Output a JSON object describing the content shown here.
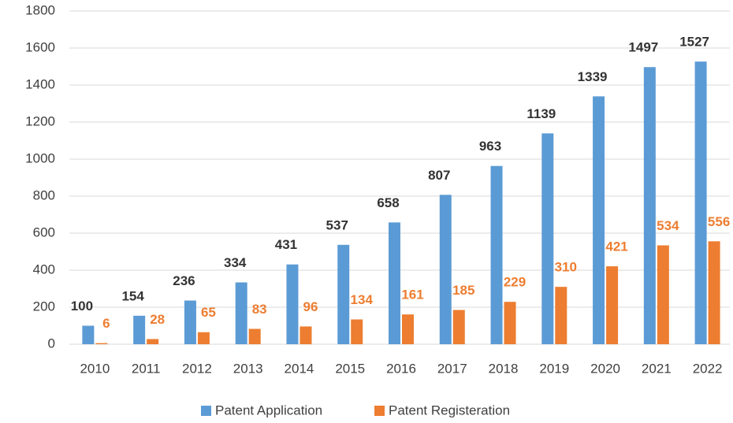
{
  "chart_data": {
    "type": "bar",
    "categories": [
      "2010",
      "2011",
      "2012",
      "2013",
      "2014",
      "2015",
      "2016",
      "2017",
      "2018",
      "2019",
      "2020",
      "2021",
      "2022"
    ],
    "series": [
      {
        "name": "Patent Application",
        "color": "#5b9bd5",
        "label_color": "#333333",
        "values": [
          100,
          154,
          236,
          334,
          431,
          537,
          658,
          807,
          963,
          1139,
          1339,
          1497,
          1527
        ]
      },
      {
        "name": "Patent Registeration",
        "color": "#ed7d31",
        "label_color": "#ed7d31",
        "values": [
          6,
          28,
          65,
          83,
          96,
          134,
          161,
          185,
          229,
          310,
          421,
          534,
          556
        ]
      }
    ],
    "ylim": [
      0,
      1800
    ],
    "yticks": [
      0,
      200,
      400,
      600,
      800,
      1000,
      1200,
      1400,
      1600,
      1800
    ],
    "grid": true,
    "legend": "bottom"
  }
}
